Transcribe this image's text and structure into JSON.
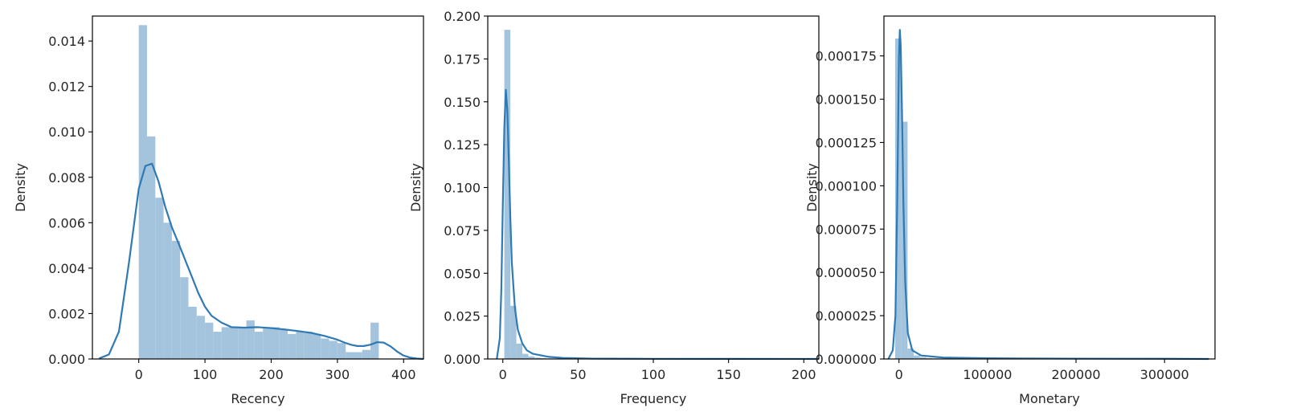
{
  "chart_data": [
    {
      "type": "histogram",
      "xlabel": "Recency",
      "ylabel": "Density",
      "xlim": [
        -70,
        430
      ],
      "ylim": [
        0,
        0.0151
      ],
      "xticks": [
        0,
        100,
        200,
        300,
        400
      ],
      "xtick_labels": [
        "0",
        "100",
        "200",
        "300",
        "400"
      ],
      "yticks": [
        0,
        0.002,
        0.004,
        0.006,
        0.008,
        0.01,
        0.012,
        0.014
      ],
      "ytick_labels": [
        "0.000",
        "0.002",
        "0.004",
        "0.006",
        "0.008",
        "0.010",
        "0.012",
        "0.014"
      ],
      "bin_edges": [
        0,
        12.5,
        25,
        37.5,
        50,
        62.5,
        75,
        87.5,
        100,
        112.5,
        125,
        137.5,
        150,
        162.5,
        175,
        187.5,
        200,
        212.5,
        225,
        237.5,
        250,
        262.5,
        275,
        287.5,
        300,
        312.5,
        325,
        337.5,
        350,
        362.5,
        375
      ],
      "bin_values": [
        0.0147,
        0.0098,
        0.0071,
        0.006,
        0.0052,
        0.0036,
        0.0023,
        0.0019,
        0.0016,
        0.0012,
        0.0014,
        0.0014,
        0.0014,
        0.0017,
        0.0012,
        0.0014,
        0.0014,
        0.0013,
        0.0011,
        0.0012,
        0.0012,
        0.0011,
        0.0009,
        0.0008,
        0.0007,
        0.0003,
        0.0003,
        0.0004,
        0.0016,
        0.0
      ],
      "kde_x": [
        -60,
        -45,
        -30,
        -15,
        0,
        10,
        20,
        30,
        40,
        50,
        60,
        75,
        90,
        100,
        110,
        125,
        140,
        160,
        180,
        200,
        220,
        240,
        260,
        280,
        300,
        310,
        320,
        330,
        340,
        350,
        360,
        370,
        380,
        390,
        400,
        410,
        420,
        430
      ],
      "kde_y": [
        2e-05,
        0.0002,
        0.0012,
        0.0042,
        0.0075,
        0.0085,
        0.0086,
        0.0078,
        0.0067,
        0.0058,
        0.0051,
        0.004,
        0.0029,
        0.0023,
        0.0019,
        0.0016,
        0.0014,
        0.00138,
        0.0014,
        0.00136,
        0.0013,
        0.00123,
        0.00115,
        0.00102,
        0.00085,
        0.00073,
        0.00063,
        0.00057,
        0.00057,
        0.00063,
        0.00074,
        0.00072,
        0.00056,
        0.00033,
        0.00015,
        6e-05,
        2e-05,
        0.0
      ],
      "color": "#2f7ab5",
      "bar_color": "#a3c4dc",
      "grid": false
    },
    {
      "type": "histogram",
      "xlabel": "Frequency",
      "ylabel": "Density",
      "xlim": [
        -10,
        210
      ],
      "ylim": [
        0,
        0.2
      ],
      "xticks": [
        0,
        50,
        100,
        150,
        200
      ],
      "xtick_labels": [
        "0",
        "50",
        "100",
        "150",
        "200"
      ],
      "yticks": [
        0,
        0.025,
        0.05,
        0.075,
        0.1,
        0.125,
        0.15,
        0.175,
        0.2
      ],
      "ytick_labels": [
        "0.000",
        "0.025",
        "0.050",
        "0.075",
        "0.100",
        "0.125",
        "0.150",
        "0.175",
        "0.200"
      ],
      "bin_edges": [
        1,
        5,
        9,
        13,
        17,
        21,
        25,
        29,
        33,
        37,
        41,
        45,
        49,
        53,
        57,
        61,
        65,
        69,
        73,
        77,
        81,
        85,
        89,
        93,
        97,
        101,
        105,
        109,
        113,
        117,
        121,
        125,
        129,
        133,
        137,
        141,
        145,
        149,
        153,
        157,
        161,
        165,
        169,
        173,
        177,
        181,
        185,
        189,
        193,
        197,
        201,
        205,
        209
      ],
      "bin_values": [
        0.192,
        0.031,
        0.009,
        0.003,
        0.0015,
        0.0008,
        0.0005,
        0.0003,
        0.0002,
        0.0001,
        0.0001,
        0.0001,
        0.0001,
        0.0,
        0.0,
        0.0,
        0.0,
        0.0,
        0.0,
        0.0,
        0.0,
        0.0,
        0.0,
        0.0,
        0.0,
        0.0,
        0.0,
        0.0,
        0.0,
        0.0,
        0.0,
        0.0,
        0.0,
        0.0,
        0.0,
        0.0,
        0.0,
        0.0,
        0.0,
        0.0,
        0.0,
        0.0,
        0.0,
        0.0,
        0.0,
        0.0,
        0.0,
        0.0,
        0.0,
        0.0,
        0.0,
        0.0
      ],
      "kde_x": [
        -4,
        -2,
        -1,
        0,
        1,
        2,
        3,
        4,
        5,
        6,
        8,
        10,
        13,
        16,
        20,
        30,
        40,
        60,
        100,
        150,
        200,
        210
      ],
      "kde_y": [
        0.0,
        0.012,
        0.04,
        0.09,
        0.135,
        0.157,
        0.145,
        0.115,
        0.082,
        0.056,
        0.03,
        0.017,
        0.009,
        0.005,
        0.003,
        0.0013,
        0.0006,
        0.0002,
        0.0001,
        5e-05,
        2e-05,
        0.0
      ],
      "color": "#2f7ab5",
      "bar_color": "#a3c4dc",
      "grid": false
    },
    {
      "type": "histogram",
      "xlabel": "Monetary",
      "ylabel": "Density",
      "xlim": [
        -17000,
        357000
      ],
      "ylim": [
        0,
        0.000198
      ],
      "xticks": [
        0,
        100000,
        200000,
        300000
      ],
      "xtick_labels": [
        "0",
        "100000",
        "200000",
        "300000"
      ],
      "yticks": [
        0,
        2.5e-05,
        5e-05,
        7.5e-05,
        0.0001,
        0.000125,
        0.00015,
        0.000175
      ],
      "ytick_labels": [
        "0.000000",
        "0.000025",
        "0.000050",
        "0.000075",
        "0.000100",
        "0.000125",
        "0.000150",
        "0.000175"
      ],
      "bin_edges": [
        -4300,
        2700,
        9700,
        16700,
        23700,
        30700,
        37700,
        44700,
        51700
      ],
      "bin_values": [
        0.000185,
        0.000137,
        6e-06,
        2e-06,
        1e-06,
        5e-07,
        3e-07,
        2e-07
      ],
      "kde_x": [
        -12000,
        -7000,
        -4000,
        -2000,
        0,
        1000,
        2000,
        3500,
        5000,
        7000,
        10000,
        15000,
        25000,
        50000,
        100000,
        200000,
        300000,
        350000
      ],
      "kde_y": [
        0.0,
        5e-06,
        2.5e-05,
        9e-05,
        0.000175,
        0.00019,
        0.00018,
        0.00014,
        9e-05,
        4.5e-05,
        1.5e-05,
        5e-06,
        2e-06,
        8e-07,
        4e-07,
        2e-07,
        1e-07,
        0.0
      ],
      "color": "#2f7ab5",
      "bar_color": "#a3c4dc",
      "grid": false
    }
  ]
}
